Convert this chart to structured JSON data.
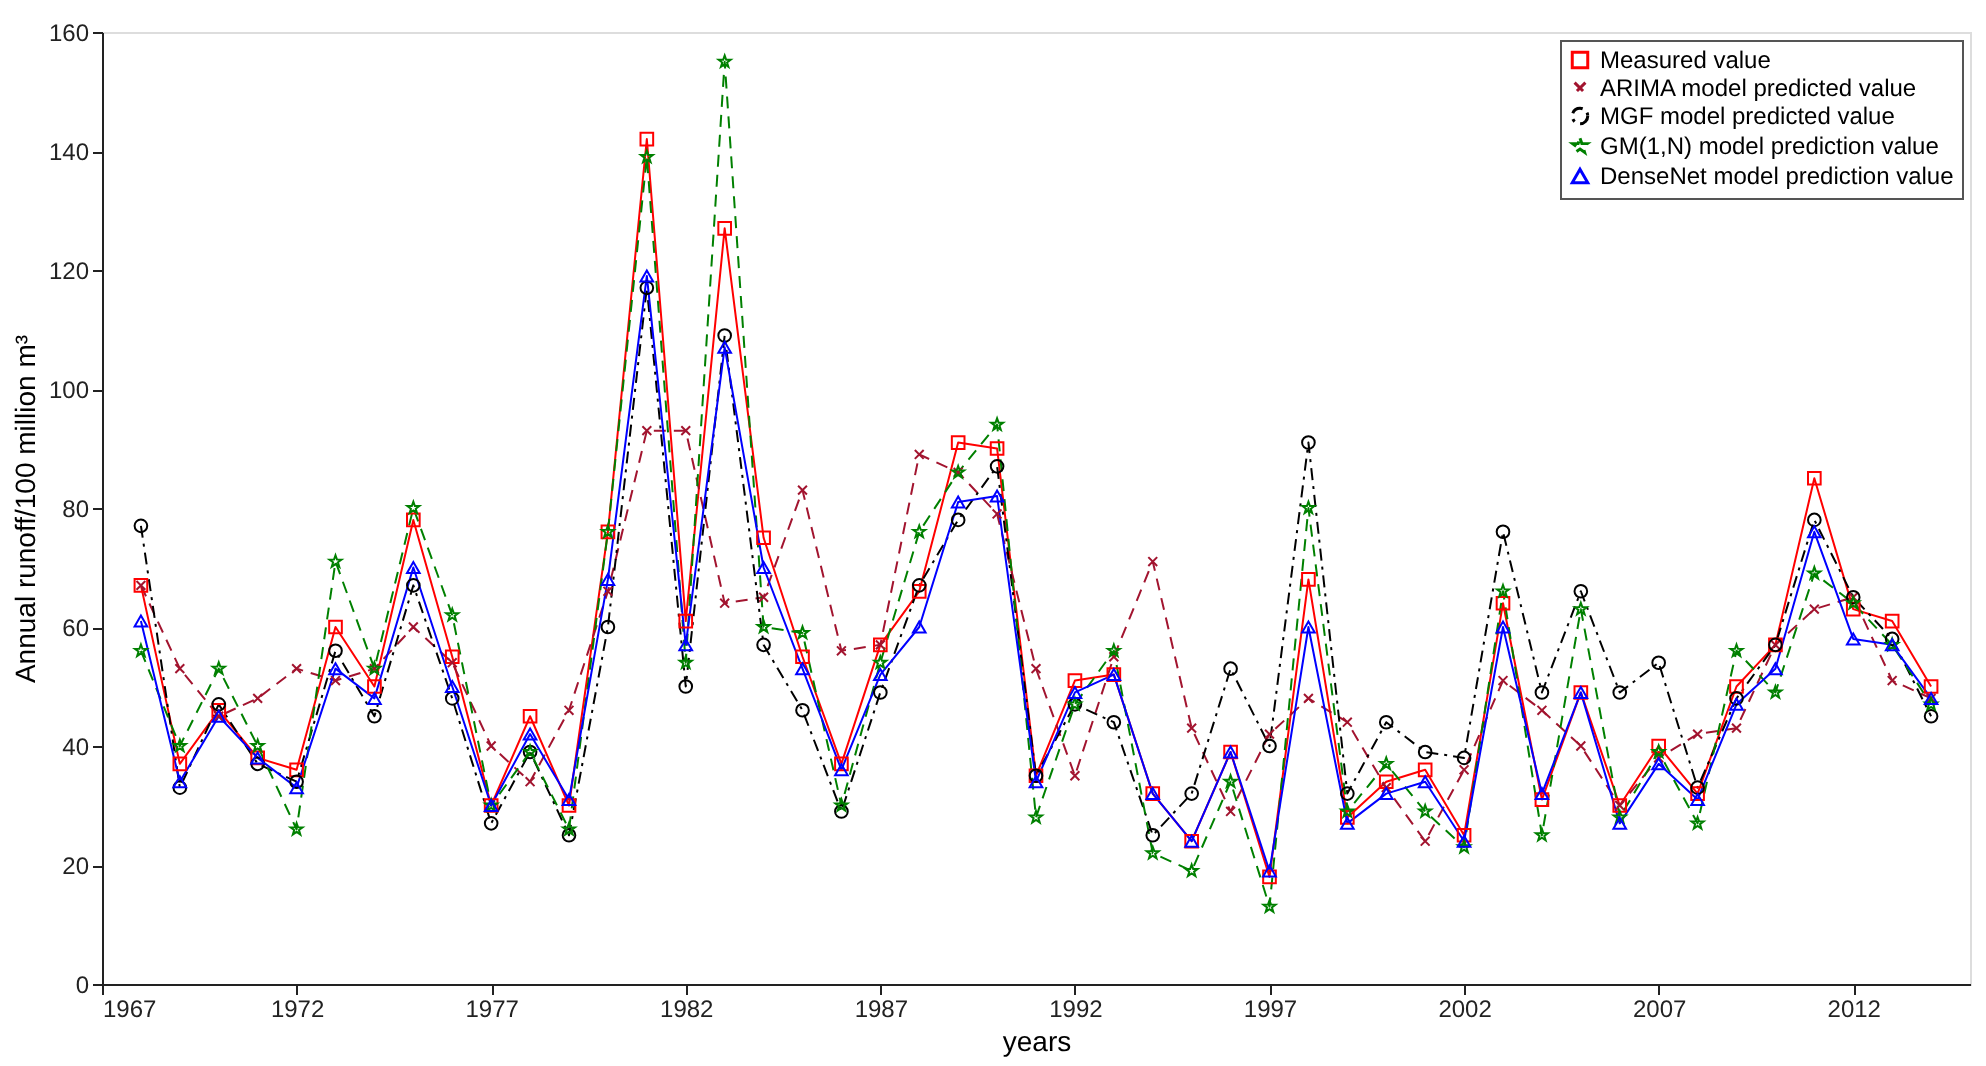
{
  "chart_data": {
    "type": "line",
    "xlabel": "years",
    "ylabel": "Annual runoff/100 million m³",
    "x": [
      1968,
      1969,
      1970,
      1971,
      1972,
      1973,
      1974,
      1975,
      1976,
      1977,
      1978,
      1979,
      1980,
      1981,
      1982,
      1983,
      1984,
      1985,
      1986,
      1987,
      1988,
      1989,
      1990,
      1991,
      1992,
      1993,
      1994,
      1995,
      1996,
      1997,
      1998,
      1999,
      2000,
      2001,
      2002,
      2003,
      2004,
      2005,
      2006,
      2007,
      2008,
      2009,
      2010,
      2011,
      2012,
      2013,
      2014
    ],
    "xlim": [
      1967,
      2015
    ],
    "xticks": [
      1967,
      1972,
      1977,
      1982,
      1987,
      1992,
      1997,
      2002,
      2007,
      2012
    ],
    "ylim": [
      0,
      160
    ],
    "yticks": [
      0,
      20,
      40,
      60,
      80,
      100,
      120,
      140,
      160
    ],
    "grid": false,
    "legend": "top right",
    "series": [
      {
        "name": "Measured value",
        "color": "#ff0000",
        "marker": "square",
        "line_style": "solid",
        "values": [
          67,
          37,
          46,
          38,
          36,
          60,
          50,
          78,
          55,
          30,
          45,
          30,
          76,
          142,
          61,
          127,
          75,
          55,
          37,
          57,
          66,
          91,
          90,
          35,
          51,
          52,
          32,
          24,
          39,
          18,
          68,
          28,
          34,
          36,
          25,
          64,
          31,
          49,
          30,
          40,
          32,
          50,
          57,
          85,
          63,
          61,
          50
        ]
      },
      {
        "name": "ARIMA model predicted value",
        "color": "#a2142f",
        "marker": "cross",
        "line_style": "dashed",
        "values": [
          67,
          53,
          45,
          48,
          53,
          51,
          53,
          60,
          54,
          40,
          34,
          46,
          66,
          93,
          93,
          64,
          65,
          83,
          56,
          57,
          89,
          86,
          79,
          53,
          35,
          55,
          71,
          43,
          29,
          42,
          48,
          44,
          33,
          24,
          36,
          51,
          46,
          40,
          30,
          38,
          42,
          43,
          57,
          63,
          65,
          51,
          48
        ]
      },
      {
        "name": "MGF model predicted value",
        "color": "#000000",
        "marker": "circle",
        "line_style": "dashdot",
        "values": [
          77,
          33,
          47,
          37,
          34,
          56,
          45,
          67,
          48,
          27,
          39,
          25,
          60,
          117,
          50,
          109,
          57,
          46,
          29,
          49,
          67,
          78,
          87,
          35,
          47,
          44,
          25,
          32,
          53,
          40,
          91,
          32,
          44,
          39,
          38,
          76,
          49,
          66,
          49,
          54,
          33,
          48,
          57,
          78,
          65,
          58,
          45
        ]
      },
      {
        "name": "GM(1,N) model prediction value",
        "color": "#008000",
        "marker": "star",
        "line_style": "dashed",
        "values": [
          56,
          40,
          53,
          40,
          26,
          71,
          53,
          80,
          62,
          30,
          39,
          26,
          76,
          139,
          54,
          155,
          60,
          59,
          30,
          54,
          76,
          86,
          94,
          28,
          47,
          56,
          22,
          19,
          34,
          13,
          80,
          29,
          37,
          29,
          23,
          66,
          25,
          63,
          28,
          39,
          27,
          56,
          49,
          69,
          64,
          57,
          47
        ]
      },
      {
        "name": "DenseNet model prediction value",
        "color": "#0000ff",
        "marker": "triangle",
        "line_style": "solid",
        "values": [
          61,
          34,
          45,
          38,
          33,
          53,
          48,
          70,
          50,
          30,
          42,
          31,
          68,
          119,
          57,
          107,
          70,
          53,
          36,
          52,
          60,
          81,
          82,
          34,
          49,
          52,
          32,
          24,
          39,
          19,
          60,
          27,
          32,
          34,
          24,
          60,
          32,
          49,
          27,
          37,
          31,
          47,
          53,
          76,
          58,
          57,
          48
        ]
      }
    ]
  }
}
